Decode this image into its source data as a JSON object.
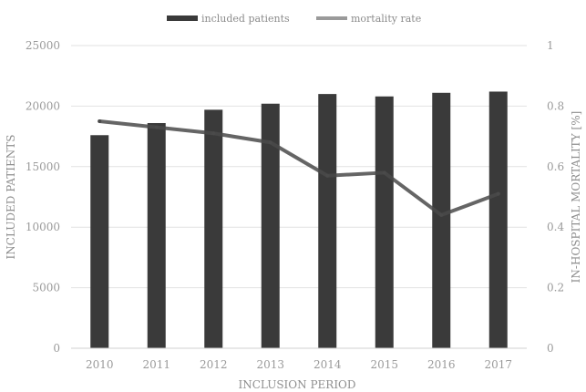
{
  "chart_data": {
    "type": "bar",
    "categories": [
      "2010",
      "2011",
      "2012",
      "2013",
      "2014",
      "2015",
      "2016",
      "2017"
    ],
    "series": [
      {
        "name": "included patients",
        "type": "bar",
        "axis": "left",
        "values": [
          17600,
          18600,
          19700,
          20200,
          21000,
          20800,
          21100,
          21200
        ],
        "color": "#3a3a3a"
      },
      {
        "name": "mortality rate",
        "type": "line",
        "axis": "right",
        "values": [
          0.75,
          0.73,
          0.71,
          0.68,
          0.57,
          0.58,
          0.44,
          0.51
        ],
        "color": "#4a4a4a"
      }
    ],
    "title": "",
    "xlabel": "INCLUSION PERIOD",
    "ylabel": "INCLUDED PATIENTS",
    "y2label": "IN-HOSPITAL MORTALITY [%]",
    "ylim": [
      0,
      25000
    ],
    "y2lim": [
      0,
      1
    ],
    "yticks": [
      "0",
      "5000",
      "10000",
      "15000",
      "20000",
      "25000"
    ],
    "y2ticks": [
      "0",
      "0.2",
      "0.4",
      "0.6",
      "0.8",
      "1"
    ],
    "grid": true,
    "legend": "top-center"
  },
  "colors": {
    "bar": "#3a3a3a",
    "line": "#4a4a4a",
    "grid": "#e2e2e2"
  }
}
